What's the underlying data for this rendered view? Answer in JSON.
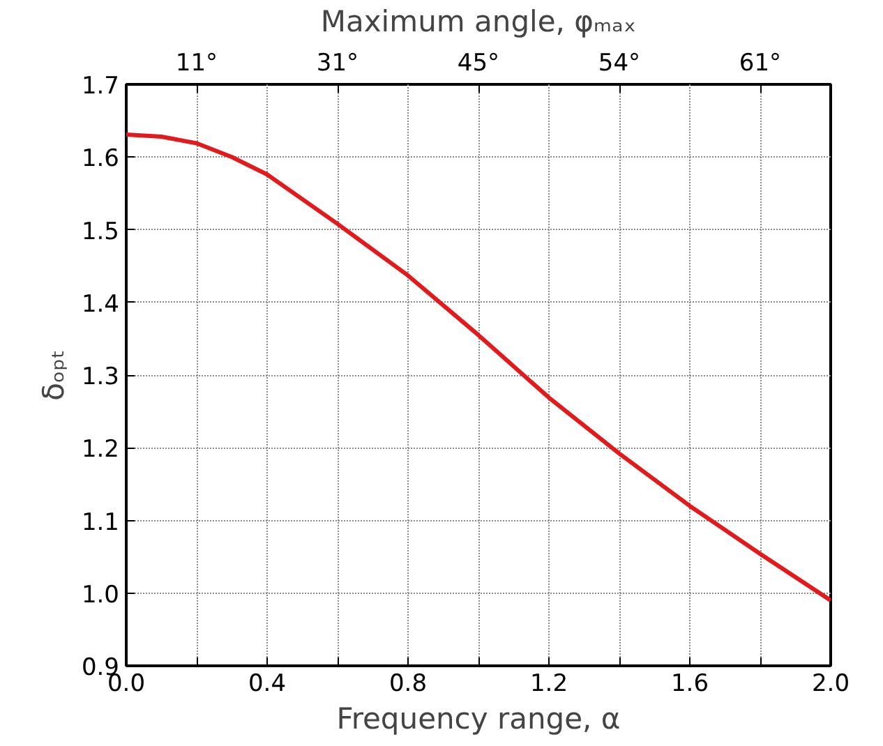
{
  "chart_data": {
    "type": "line",
    "xlabel": "Frequency range, α",
    "ylabel": "δₒₚₜ",
    "x2label": "Maximum angle, φₘₐₓ",
    "x": [
      0.0,
      0.1,
      0.2,
      0.3,
      0.4,
      0.6,
      0.8,
      1.0,
      1.2,
      1.4,
      1.6,
      1.8,
      2.0
    ],
    "series": [
      {
        "color": "#e31a1c",
        "values": [
          1.631,
          1.628,
          1.619,
          1.6,
          1.576,
          1.508,
          1.437,
          1.355,
          1.269,
          1.192,
          1.12,
          1.054,
          0.99
        ]
      }
    ],
    "xlim": [
      0.0,
      2.0
    ],
    "ylim": [
      0.9,
      1.7
    ],
    "xticks": [
      "0.0",
      {
        "value": 0.2,
        "label": null
      },
      0.4,
      {
        "value": 0.6,
        "label": null
      },
      0.8,
      {
        "value": 1.0,
        "label": null
      },
      1.2,
      {
        "value": 1.4,
        "label": null
      },
      1.6,
      {
        "value": 1.8,
        "label": null
      },
      "2.0"
    ],
    "annotations": [
      "11°",
      "31°",
      "45°",
      "54°",
      "61°"
    ],
    "yticks": [
      0.9,
      1.1,
      1.2,
      1.3,
      1.4,
      1.5,
      1.6,
      1.7,
      {
        "value": 1.0,
        "label": "1.0"
      }
    ],
    "grid": true,
    "line_style": "solid",
    "marker": "none"
  }
}
